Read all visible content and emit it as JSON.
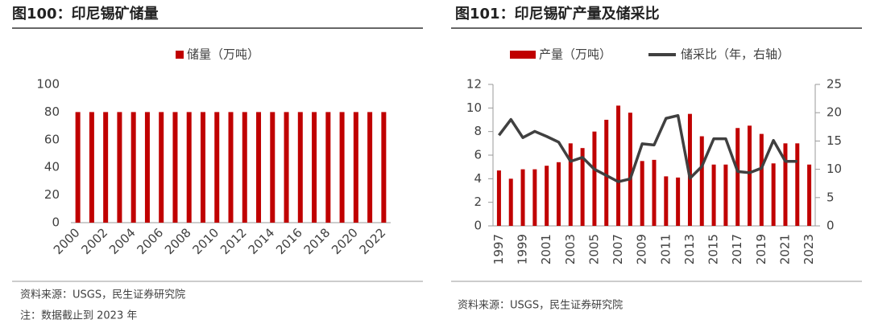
{
  "chart_data": [
    {
      "type": "bar",
      "title": "图100：印尼锡矿储量",
      "categories": [
        "2000",
        null,
        "2002",
        null,
        "2004",
        null,
        "2006",
        null,
        "2008",
        null,
        "2010",
        null,
        "2012",
        null,
        "2014",
        null,
        "2016",
        null,
        "2018",
        null,
        "2020",
        null,
        "2022"
      ],
      "series": [
        {
          "name": "储量（万吨）",
          "color": "#c00000",
          "values": [
            80,
            80,
            80,
            80,
            80,
            80,
            80,
            80,
            80,
            80,
            80,
            80,
            80,
            80,
            80,
            80,
            80,
            80,
            80,
            80,
            80,
            80,
            80
          ]
        }
      ],
      "ylim": [
        0,
        100
      ],
      "yticks": [
        0,
        20,
        40,
        60,
        80,
        100
      ],
      "source": "资料来源：USGS，民生证券研究院",
      "note": "注：数据截止到 2023 年"
    },
    {
      "type": "bar",
      "title": "图101：印尼锡矿产量及储采比",
      "categories": [
        "1997",
        null,
        "1999",
        null,
        "2001",
        null,
        "2003",
        null,
        "2005",
        null,
        "2007",
        null,
        "2009",
        null,
        "2011",
        null,
        "2013",
        null,
        "2015",
        null,
        "2017",
        null,
        "2019",
        null,
        "2021",
        null,
        "2023"
      ],
      "series": [
        {
          "name": "产量（万吨）",
          "color": "#c00000",
          "type": "bar",
          "values": [
            4.7,
            4.0,
            4.8,
            4.8,
            5.1,
            5.4,
            7.0,
            6.6,
            8.0,
            9.0,
            10.2,
            9.6,
            5.5,
            5.6,
            4.2,
            4.1,
            9.5,
            7.6,
            5.2,
            5.2,
            8.3,
            8.5,
            7.8,
            5.3,
            7.0,
            7.0,
            5.2
          ]
        },
        {
          "name": "储采比（年，右轴）",
          "color": "#404040",
          "type": "line",
          "axis": "y2",
          "values": [
            16,
            18.8,
            15.6,
            16.7,
            15.8,
            14.8,
            11.4,
            12.1,
            10.0,
            8.9,
            7.8,
            8.3,
            14.5,
            14.3,
            19.0,
            19.5,
            8.4,
            10.5,
            15.4,
            15.4,
            9.6,
            9.4,
            10.2,
            15.1,
            11.4,
            11.4,
            null
          ]
        }
      ],
      "ylim": [
        0,
        12
      ],
      "yticks": [
        0,
        2,
        4,
        6,
        8,
        10,
        12
      ],
      "y2lim": [
        0,
        25
      ],
      "y2ticks": [
        0,
        5,
        10,
        15,
        20,
        25
      ],
      "source": "资料来源：USGS，民生证券研究院"
    }
  ]
}
